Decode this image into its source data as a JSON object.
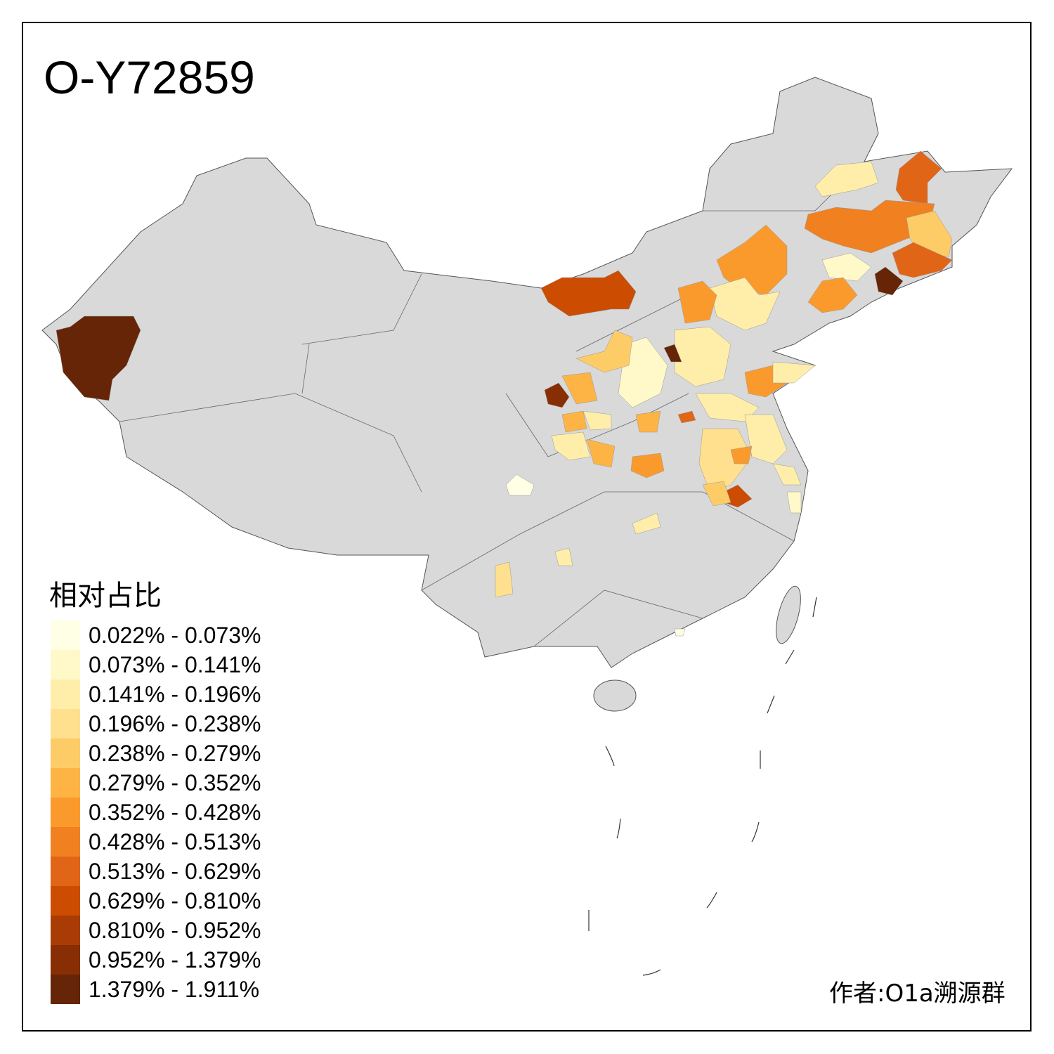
{
  "title": "O-Y72859",
  "legend": {
    "title": "相对占比",
    "classes": [
      {
        "label": "0.022% - 0.073%",
        "color": "#FFFFE6"
      },
      {
        "label": "0.073% - 0.141%",
        "color": "#FFF8C8"
      },
      {
        "label": "0.141% - 0.196%",
        "color": "#FFEEAA"
      },
      {
        "label": "0.196% - 0.238%",
        "color": "#FEE08E"
      },
      {
        "label": "0.238% - 0.279%",
        "color": "#FECC66"
      },
      {
        "label": "0.279% - 0.352%",
        "color": "#FDB445"
      },
      {
        "label": "0.352% - 0.428%",
        "color": "#FB9A2C"
      },
      {
        "label": "0.428% - 0.513%",
        "color": "#F08020"
      },
      {
        "label": "0.513% - 0.629%",
        "color": "#E16516"
      },
      {
        "label": "0.629% - 0.810%",
        "color": "#CC4C02"
      },
      {
        "label": "0.810% - 0.952%",
        "color": "#A93C05"
      },
      {
        "label": "0.952% - 1.379%",
        "color": "#872E05"
      },
      {
        "label": "1.379% - 1.911%",
        "color": "#662506"
      }
    ]
  },
  "base_color": "#D9D9D9",
  "author": "作者:O1a溯源群"
}
